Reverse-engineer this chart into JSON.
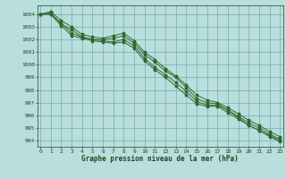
{
  "x": [
    0,
    1,
    2,
    3,
    4,
    5,
    6,
    7,
    8,
    9,
    10,
    11,
    12,
    13,
    14,
    15,
    16,
    17,
    18,
    19,
    20,
    21,
    22,
    23
  ],
  "series1": [
    1004.0,
    1004.1,
    1003.2,
    1002.8,
    1002.2,
    1002.0,
    1002.0,
    1002.1,
    1002.3,
    1001.7,
    1000.8,
    1000.2,
    999.5,
    999.0,
    998.2,
    997.3,
    997.0,
    996.9,
    996.4,
    995.8,
    995.2,
    994.8,
    994.4,
    994.0
  ],
  "series2": [
    1004.0,
    1004.0,
    1003.3,
    1002.5,
    1002.2,
    1002.0,
    1001.9,
    1001.8,
    1002.0,
    1001.5,
    1000.5,
    999.8,
    999.2,
    998.6,
    997.9,
    997.1,
    996.8,
    996.8,
    996.4,
    995.9,
    995.4,
    995.0,
    994.5,
    994.1
  ],
  "series3": [
    1004.0,
    1004.0,
    1003.1,
    1002.3,
    1002.1,
    1001.9,
    1001.8,
    1001.7,
    1001.8,
    1001.3,
    1000.3,
    999.6,
    999.0,
    998.3,
    997.6,
    996.9,
    996.7,
    996.7,
    996.2,
    995.7,
    995.2,
    994.8,
    994.3,
    993.9
  ],
  "series4": [
    1004.0,
    1004.2,
    1003.5,
    1003.0,
    1002.4,
    1002.2,
    1002.1,
    1002.3,
    1002.5,
    1001.9,
    1001.0,
    1000.4,
    999.7,
    999.1,
    998.4,
    997.6,
    997.2,
    997.0,
    996.6,
    996.1,
    995.6,
    995.2,
    994.7,
    994.3
  ],
  "line_color": "#2d6a2d",
  "bg_color": "#b8dede",
  "grid_color": "#7aabab",
  "text_color": "#1a4a1a",
  "xlabel": "Graphe pression niveau de la mer (hPa)",
  "ylim": [
    993.5,
    1004.7
  ],
  "xlim": [
    -0.3,
    23.3
  ],
  "yticks": [
    994,
    995,
    996,
    997,
    998,
    999,
    1000,
    1001,
    1002,
    1003,
    1004
  ],
  "xticks": [
    0,
    1,
    2,
    3,
    4,
    5,
    6,
    7,
    8,
    9,
    10,
    11,
    12,
    13,
    14,
    15,
    16,
    17,
    18,
    19,
    20,
    21,
    22,
    23
  ]
}
